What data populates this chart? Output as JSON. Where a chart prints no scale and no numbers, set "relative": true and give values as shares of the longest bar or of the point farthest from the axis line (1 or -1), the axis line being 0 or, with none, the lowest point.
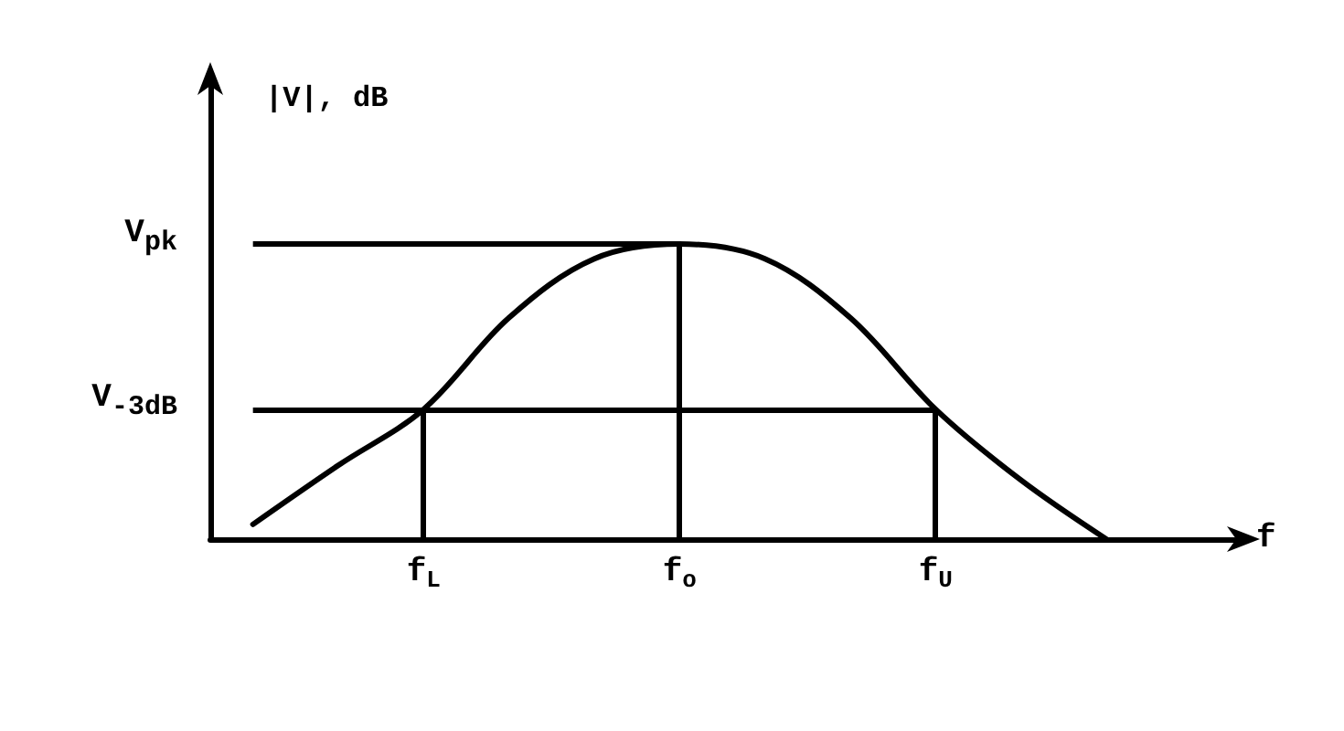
{
  "chart_data": {
    "type": "line",
    "relative": true,
    "xlabel": "f",
    "ylabel": "|V|, dB",
    "categories": [
      null,
      null,
      "f$_{L}$",
      null,
      null,
      "f$_{o}$",
      null,
      null,
      "f$_{U}$",
      null,
      null,
      null
    ],
    "series": [
      {
        "color": "#000000",
        "values": [
          0.05,
          0.25,
          0.44,
          0.75,
          0.95,
          1,
          0.95,
          0.75,
          0.44,
          0.2,
          0.0,
          null
        ]
      }
    ],
    "ref_lines": [
      {
        "axis": "y",
        "value": 1,
        "label": "V$_{pk}$"
      },
      {
        "axis": "y",
        "value": 0.44,
        "label": "V$_{-3dB}$"
      },
      {
        "axis": "x",
        "value": "f$_{L}$"
      },
      {
        "axis": "x",
        "value": "f$_{o}$"
      },
      {
        "axis": "x",
        "value": "f$_{U}$"
      }
    ],
    "marker": "none",
    "line_style": "solid",
    "grid": false
  }
}
